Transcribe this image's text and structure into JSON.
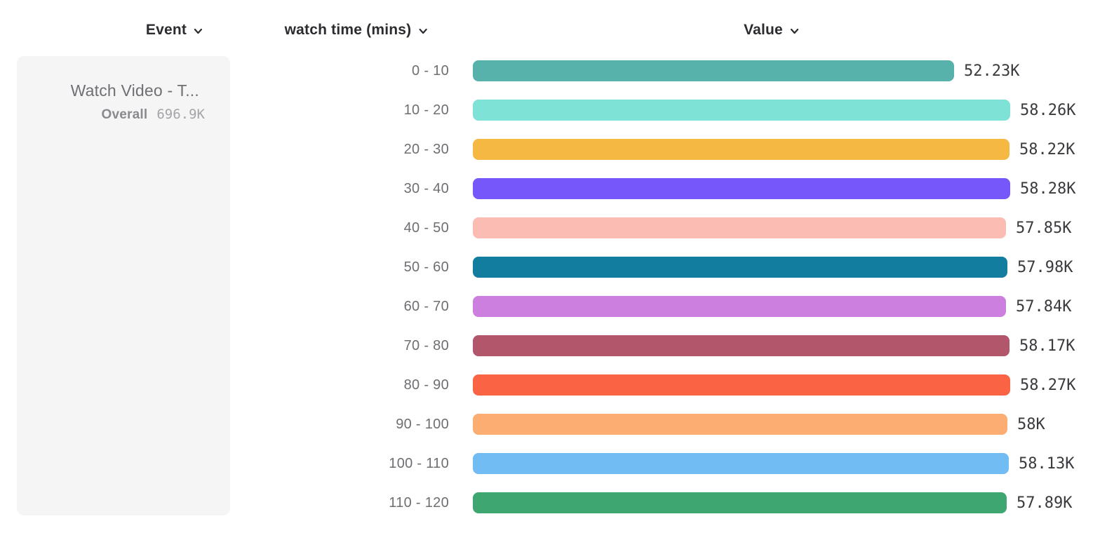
{
  "headers": {
    "event": "Event",
    "breakdown": "watch time (mins)",
    "value": "Value"
  },
  "event_panel": {
    "event_name": "Watch Video - T...",
    "overall_label": "Overall",
    "overall_value": "696.9K"
  },
  "chart_data": {
    "type": "bar",
    "orientation": "horizontal",
    "title": "",
    "xlabel": "Value",
    "ylabel": "watch time (mins)",
    "unit": "K",
    "axis_max": 58.28,
    "grid": false,
    "legend_position": "none",
    "categories": [
      "0 - 10",
      "10 - 20",
      "20 - 30",
      "30 - 40",
      "40 - 50",
      "50 - 60",
      "60 - 70",
      "70 - 80",
      "80 - 90",
      "90 - 100",
      "100 - 110",
      "110 - 120"
    ],
    "values": [
      52.23,
      58.26,
      58.22,
      58.28,
      57.85,
      57.98,
      57.84,
      58.17,
      58.27,
      58.0,
      58.13,
      57.89
    ],
    "value_labels": [
      "52.23K",
      "58.26K",
      "58.22K",
      "58.28K",
      "57.85K",
      "57.98K",
      "57.84K",
      "58.17K",
      "58.27K",
      "58K",
      "58.13K",
      "57.89K"
    ],
    "bar_colors": [
      "#57b2ab",
      "#7ee3d6",
      "#f5b843",
      "#7557fa",
      "#fbbdb3",
      "#137da0",
      "#cd7fdf",
      "#b2566c",
      "#fa6444",
      "#fbad72",
      "#72bcf4",
      "#3ea771"
    ]
  },
  "colors": {
    "panel_bg": "#f5f5f6",
    "header_text": "#2b2b30",
    "row_label_text": "#6e6e73",
    "value_text": "#3a3a3e",
    "chevron": "#2b2b30"
  },
  "icons": {
    "chevron_down": "chevron-down-icon"
  }
}
